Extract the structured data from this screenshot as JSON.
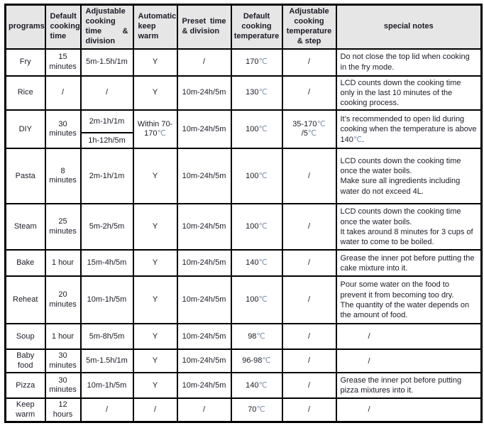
{
  "columns": [
    {
      "label": "programs"
    },
    {
      "label": "Default cooking time"
    },
    {
      "label": "Adjustable cooking time & division"
    },
    {
      "label": "Automatic keep warm"
    },
    {
      "label": "Preset time & division"
    },
    {
      "label": "Default cooking temperature"
    },
    {
      "label": "Adjustable cooking temperature & step"
    },
    {
      "label": "special notes"
    }
  ],
  "rows": [
    {
      "program": "Fry",
      "default_time": "15 minutes",
      "adjustable_time": "5m-1.5h/1m",
      "keep_warm": "Y",
      "preset": "/",
      "default_temp": "170℃",
      "adjustable_temp": "/",
      "notes": "Do not close the top lid when cooking in the fry mode."
    },
    {
      "program": "Rice",
      "default_time": "/",
      "adjustable_time": "/",
      "keep_warm": "Y",
      "preset": "10m-24h/5m",
      "default_temp": "130℃",
      "adjustable_temp": "/",
      "notes": "LCD counts down the cooking time only in the last 10 minutes of the cooking process."
    },
    {
      "program": "DIY",
      "default_time": "30 minutes",
      "adjustable_time_top": "2m-1h/1m",
      "adjustable_time_bottom": "1h-12h/5m",
      "keep_warm": "Within 70-170℃",
      "preset": "10m-24h/5m",
      "default_temp": "100℃",
      "adjustable_temp": "35-170℃\n/5℃",
      "notes": "It’s recommended to open lid during cooking when the temperature is above 140℃."
    },
    {
      "program": "Pasta",
      "default_time": "8 minutes",
      "adjustable_time": "2m-1h/1m",
      "keep_warm": "Y",
      "preset": "10m-24h/5m",
      "default_temp": "100℃",
      "adjustable_temp": "/",
      "notes": "LCD counts down the cooking time once the water boils.\nMake sure all ingredients including water do not exceed 4L."
    },
    {
      "program": "Steam",
      "default_time": "25 minutes",
      "adjustable_time": "5m-2h/5m",
      "keep_warm": "Y",
      "preset": "10m-24h/5m",
      "default_temp": "100℃",
      "adjustable_temp": "/",
      "notes": "LCD counts down the cooking time once the water boils.\nIt takes around 8 minutes for 3 cups of water to come to be boiled."
    },
    {
      "program": "Bake",
      "default_time": "1 hour",
      "adjustable_time": "15m-4h/5m",
      "keep_warm": "Y",
      "preset": "10m-24h/5m",
      "default_temp": "140℃",
      "adjustable_temp": "/",
      "notes": "Grease the inner pot before putting the cake mixture into it."
    },
    {
      "program": "Reheat",
      "default_time": "20 minutes",
      "adjustable_time": "10m-1h/5m",
      "keep_warm": "Y",
      "preset": "10m-24h/5m",
      "default_temp": "100℃",
      "adjustable_temp": "/",
      "notes": "Pour some water on the food to prevent it from becoming too dry.\nThe quantity of the water depends on the amount of food."
    },
    {
      "program": "Soup",
      "default_time": "1 hour",
      "adjustable_time": "5m-8h/5m",
      "keep_warm": "Y",
      "preset": "10m-24h/5m",
      "default_temp": "98℃",
      "adjustable_temp": "/",
      "notes": "/"
    },
    {
      "program": "Baby food",
      "default_time": "30 minutes",
      "adjustable_time": "5m-1.5h/1m",
      "keep_warm": "Y",
      "preset": "10m-24h/5m",
      "default_temp": "96-98℃",
      "adjustable_temp": "/",
      "notes": "/"
    },
    {
      "program": "Pizza",
      "default_time": "30 minutes",
      "adjustable_time": "10m-1h/5m",
      "keep_warm": "Y",
      "preset": "10m-24h/5m",
      "default_temp": "140℃",
      "adjustable_temp": "/",
      "notes": "Grease the inner pot before putting pizza mixtures into it."
    },
    {
      "program": "Keep warm",
      "default_time": "12 hours",
      "adjustable_time": "/",
      "keep_warm": "/",
      "preset": "/",
      "default_temp": "70℃",
      "adjustable_temp": "/",
      "notes": "/"
    }
  ]
}
